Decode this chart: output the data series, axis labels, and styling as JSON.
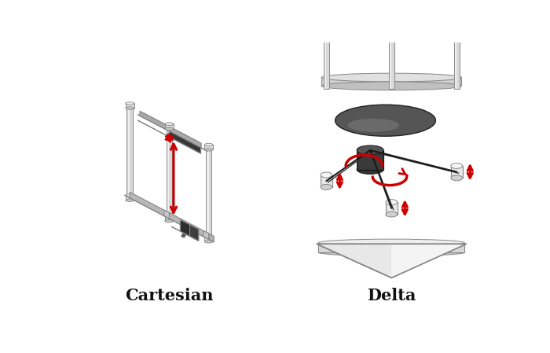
{
  "title_left": "Cartesian",
  "title_right": "Delta",
  "bg_color": "#ffffff",
  "title_fontsize": 15,
  "title_fontweight": "bold",
  "arrow_color": "#cc0000",
  "lc": "#888888",
  "rod_fill": "#d8d8d8",
  "rod_hi": "#f0f0f0",
  "rail_fill": "#cccccc",
  "rail_side": "#aaaaaa",
  "dark_gray": "#2d2d2d",
  "med_gray": "#4a4a4a",
  "lt_gray": "#b0b0b0",
  "cap_fill": "#e0e0e0",
  "slider_fill": "#e8e8e8",
  "base_fill": "#d4d4d4",
  "roof_fill": "#e0e0e0",
  "roof_hi": "#f0f0f0",
  "bed_fill": "#555555",
  "bed_dark": "#3a3a3a"
}
